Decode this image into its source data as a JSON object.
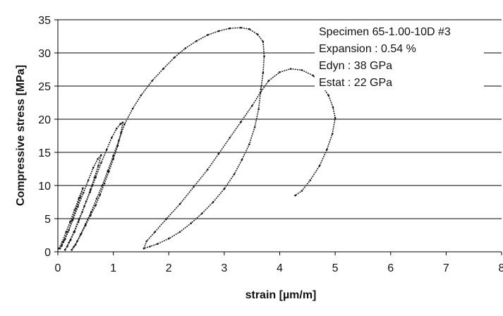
{
  "chart_data": {
    "type": "line",
    "xlabel": "strain [µm/m]",
    "ylabel": "Compressive stress [MPa]",
    "xlim": [
      0,
      8
    ],
    "ylim": [
      0,
      35
    ],
    "x_ticks": [
      0,
      1,
      2,
      3,
      4,
      5,
      6,
      7,
      8
    ],
    "y_ticks": [
      0,
      5,
      10,
      15,
      20,
      25,
      30,
      35
    ],
    "grid": "horizontal",
    "annotation": [
      "Specimen 65-1.00-10D #3",
      "Expansion : 0.54 %",
      "Edyn : 38 GPa",
      "Estat : 22 GPa"
    ],
    "series": [
      {
        "x": [
          0.02,
          0.08,
          0.15,
          0.22,
          0.3,
          0.38,
          0.45,
          0.4,
          0.33,
          0.26,
          0.2,
          0.13,
          0.07,
          0.04,
          0.1,
          0.18,
          0.27,
          0.36,
          0.46,
          0.55,
          0.64,
          0.72,
          0.78,
          0.73,
          0.66,
          0.59,
          0.51,
          0.44,
          0.37,
          0.3,
          0.23,
          0.17,
          0.13,
          0.2,
          0.29,
          0.38,
          0.48,
          0.58,
          0.68,
          0.78,
          0.88,
          0.97,
          1.06,
          1.13,
          1.17,
          1.14,
          1.08,
          1.0,
          0.92,
          0.84,
          0.76,
          0.68,
          0.59,
          0.5,
          0.42,
          0.35,
          0.29,
          0.25,
          0.32,
          0.41,
          0.5,
          0.6,
          0.7,
          0.8,
          0.9,
          1.0,
          1.1,
          1.2,
          1.35,
          1.5,
          1.7,
          1.9,
          2.1,
          2.3,
          2.5,
          2.7,
          2.9,
          3.1,
          3.3,
          3.45,
          3.6,
          3.7,
          3.72,
          3.7,
          3.66,
          3.62,
          3.55,
          3.45,
          3.32,
          3.18,
          3.0,
          2.8,
          2.6,
          2.4,
          2.2,
          2.0,
          1.8,
          1.66,
          1.55,
          1.6,
          1.75,
          1.95,
          2.2,
          2.45,
          2.7,
          2.9,
          3.1,
          3.3,
          3.5,
          3.65,
          3.8,
          4.0,
          4.2,
          4.4,
          4.6,
          4.75,
          4.88,
          4.96,
          5.0,
          4.95,
          4.85,
          4.72,
          4.55,
          4.4,
          4.28
        ],
        "y": [
          0.5,
          1.5,
          3.0,
          4.5,
          6.3,
          8.1,
          9.6,
          8.2,
          6.5,
          4.8,
          3.3,
          1.9,
          0.9,
          0.5,
          1.5,
          3.0,
          4.8,
          6.8,
          8.9,
          10.8,
          12.7,
          14.0,
          14.6,
          13.0,
          11.2,
          9.4,
          7.6,
          6.0,
          4.5,
          3.0,
          1.8,
          0.8,
          0.3,
          1.4,
          3.0,
          4.9,
          6.9,
          9.0,
          11.2,
          13.4,
          15.4,
          17.2,
          18.6,
          19.3,
          19.5,
          18.0,
          16.0,
          14.0,
          12.1,
          10.3,
          8.6,
          7.0,
          5.5,
          4.0,
          2.7,
          1.6,
          0.8,
          0.3,
          1.1,
          2.6,
          4.2,
          6.0,
          8.0,
          10.0,
          12.2,
          14.5,
          16.8,
          19.2,
          21.6,
          23.6,
          25.8,
          27.6,
          29.3,
          30.7,
          31.8,
          32.7,
          33.3,
          33.7,
          33.8,
          33.6,
          32.8,
          31.7,
          29.5,
          27.0,
          24.5,
          21.5,
          18.8,
          16.2,
          13.9,
          11.7,
          9.5,
          7.5,
          5.8,
          4.3,
          3.0,
          2.0,
          1.2,
          0.8,
          0.5,
          1.6,
          3.0,
          4.9,
          7.2,
          9.8,
          12.4,
          14.8,
          17.2,
          19.6,
          22.0,
          24.0,
          25.8,
          27.1,
          27.6,
          27.4,
          26.6,
          25.2,
          23.6,
          21.8,
          20.2,
          17.8,
          15.4,
          13.0,
          10.8,
          9.2,
          8.5
        ]
      }
    ]
  }
}
